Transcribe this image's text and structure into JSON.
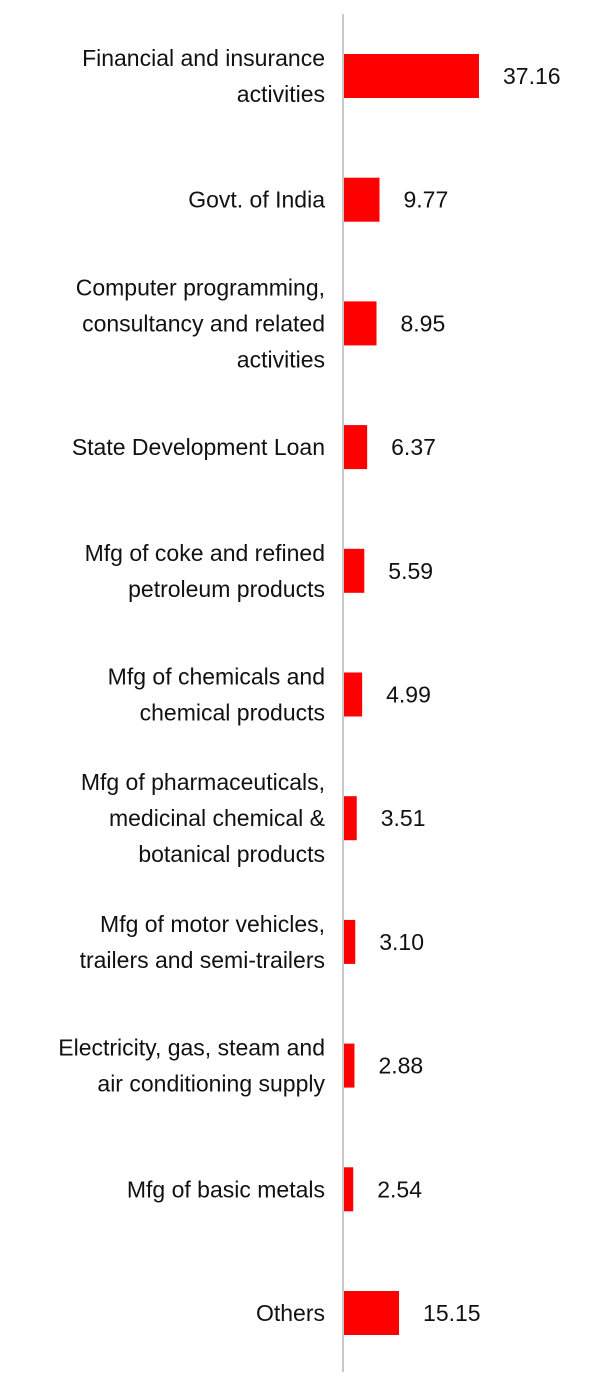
{
  "chart_data": {
    "type": "bar",
    "orientation": "horizontal",
    "title": "",
    "xlabel": "",
    "ylabel": "",
    "bar_color": "#ff0000",
    "axis_color": "#c8c8c8",
    "categories": [
      [
        "Financial and insurance",
        "activities"
      ],
      [
        "Govt. of India"
      ],
      [
        "Computer programming,",
        "consultancy and related",
        "activities"
      ],
      [
        "State Development Loan"
      ],
      [
        "Mfg of coke and refined",
        "petroleum products"
      ],
      [
        "Mfg of chemicals and",
        "chemical products"
      ],
      [
        "Mfg of pharmaceuticals,",
        "medicinal chemical &",
        "botanical products"
      ],
      [
        "Mfg of motor vehicles,",
        "trailers and semi-trailers"
      ],
      [
        "Electricity, gas, steam and",
        "air conditioning supply"
      ],
      [
        "Mfg of basic metals"
      ],
      [
        "Others"
      ]
    ],
    "values": [
      37.16,
      9.77,
      8.95,
      6.37,
      5.59,
      4.99,
      3.51,
      3.1,
      2.88,
      2.54,
      15.15
    ],
    "value_labels": [
      "37.16",
      "9.77",
      "8.95",
      "6.37",
      "5.59",
      "4.99",
      "3.51",
      "3.10",
      "2.88",
      "2.54",
      "15.15"
    ],
    "xlim": [
      0,
      37.16
    ],
    "grid": false,
    "legend": "none"
  }
}
